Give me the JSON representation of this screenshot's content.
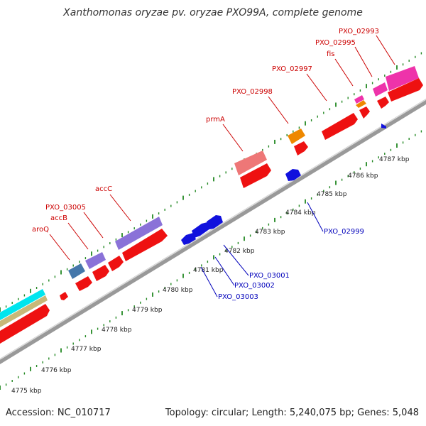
{
  "header": {
    "title": "Xanthomonas oryzae pv. oryzae PXO99A, complete genome"
  },
  "footer": {
    "accession": "Accession: NC_010717",
    "summary": "Topology: circular; Length: 5,240,075 bp; Genes: 5,048"
  },
  "colors": {
    "forward_gene": "#ee1111",
    "reverse_gene": "#1111dd",
    "forward_label": "#cc0000",
    "reverse_label": "#0000bb",
    "backbone": "#999999",
    "tick": "#228822",
    "purple_feature": "#8a72d8",
    "pink_feature": "#ee7777",
    "orange_feature": "#ee8800",
    "magenta_feature": "#ee33aa",
    "steelblue_feature": "#4477aa",
    "cyan_feature": "#00e5ee",
    "tan_feature": "#c8b878"
  },
  "scale_labels": [
    "4775 kbp",
    "4776 kbp",
    "4777 kbp",
    "4778 kbp",
    "4779 kbp",
    "4780 kbp",
    "4781 kbp",
    "4782 kbp",
    "4783 kbp",
    "4784 kbp",
    "4785 kbp",
    "4786 kbp",
    "4787 kbp"
  ],
  "forward_gene_labels": [
    "aroQ",
    "accB",
    "PXO_03005",
    "accC",
    "prmA",
    "PXO_02998",
    "PXO_02997",
    "fis",
    "PXO_02995",
    "PXO_02993"
  ],
  "reverse_gene_labels": [
    "PXO_02999",
    "PXO_03001",
    "PXO_03002",
    "PXO_03003"
  ]
}
